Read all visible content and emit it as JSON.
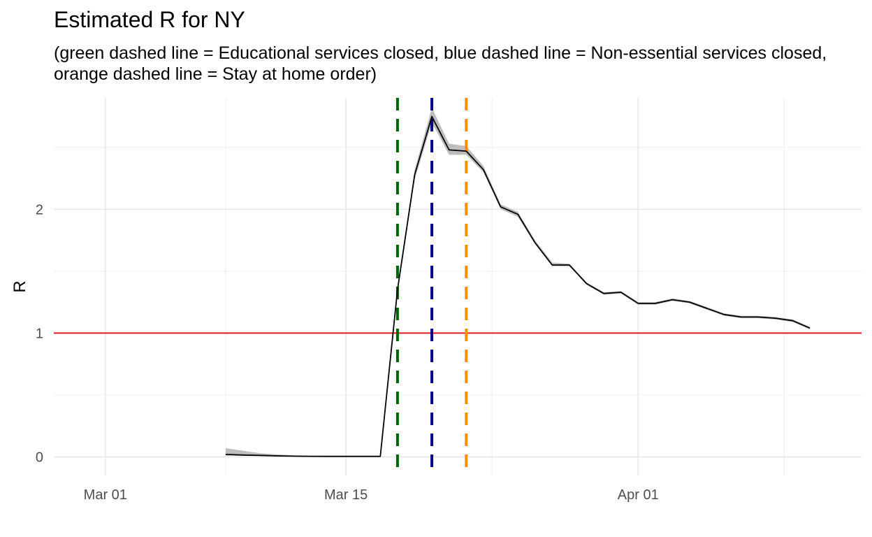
{
  "chart_data": {
    "type": "line",
    "title": "Estimated R for NY",
    "subtitle": "(green dashed line = Educational services closed, blue dashed line = Non-essential services closed,\norange dashed line = Stay at home order)",
    "xlabel": "",
    "ylabel": "R",
    "x_ticks": [
      "Mar 01",
      "Mar 15",
      "Apr 01"
    ],
    "x_tick_dates": [
      "2020-03-01",
      "2020-03-15",
      "2020-04-01"
    ],
    "xlim": [
      "2020-02-27",
      "2020-04-14"
    ],
    "y_ticks": [
      0,
      1,
      2
    ],
    "ylim": [
      -0.15,
      2.9
    ],
    "grid": true,
    "series": [
      {
        "color": "#000000",
        "points": [
          {
            "x": "2020-03-08",
            "y": 0.02,
            "lo": 0.01,
            "hi": 0.07
          },
          {
            "x": "2020-03-09",
            "y": 0.015,
            "lo": 0.01,
            "hi": 0.05
          },
          {
            "x": "2020-03-10",
            "y": 0.012,
            "lo": 0.008,
            "hi": 0.03
          },
          {
            "x": "2020-03-11",
            "y": 0.008,
            "lo": 0.005,
            "hi": 0.02
          },
          {
            "x": "2020-03-12",
            "y": 0.006,
            "lo": 0.004,
            "hi": 0.012
          },
          {
            "x": "2020-03-13",
            "y": 0.005,
            "lo": 0.003,
            "hi": 0.008
          },
          {
            "x": "2020-03-14",
            "y": 0.004,
            "lo": 0.003,
            "hi": 0.006
          },
          {
            "x": "2020-03-15",
            "y": 0.004,
            "lo": 0.003,
            "hi": 0.005
          },
          {
            "x": "2020-03-16",
            "y": 0.004,
            "lo": 0.003,
            "hi": 0.005
          },
          {
            "x": "2020-03-17",
            "y": 0.004,
            "lo": 0.003,
            "hi": 0.005
          },
          {
            "x": "2020-03-18",
            "y": 1.35,
            "lo": 1.33,
            "hi": 1.37
          },
          {
            "x": "2020-03-19",
            "y": 2.28,
            "lo": 2.24,
            "hi": 2.32
          },
          {
            "x": "2020-03-20",
            "y": 2.75,
            "lo": 2.7,
            "hi": 2.82
          },
          {
            "x": "2020-03-21",
            "y": 2.48,
            "lo": 2.44,
            "hi": 2.53
          },
          {
            "x": "2020-03-22",
            "y": 2.47,
            "lo": 2.44,
            "hi": 2.51
          },
          {
            "x": "2020-03-23",
            "y": 2.32,
            "lo": 2.3,
            "hi": 2.35
          },
          {
            "x": "2020-03-24",
            "y": 2.02,
            "lo": 2.0,
            "hi": 2.04
          },
          {
            "x": "2020-03-25",
            "y": 1.96,
            "lo": 1.94,
            "hi": 1.98
          },
          {
            "x": "2020-03-26",
            "y": 1.73,
            "lo": 1.72,
            "hi": 1.75
          },
          {
            "x": "2020-03-27",
            "y": 1.55,
            "lo": 1.54,
            "hi": 1.57
          },
          {
            "x": "2020-03-28",
            "y": 1.55,
            "lo": 1.54,
            "hi": 1.56
          },
          {
            "x": "2020-03-29",
            "y": 1.4,
            "lo": 1.39,
            "hi": 1.41
          },
          {
            "x": "2020-03-30",
            "y": 1.32,
            "lo": 1.31,
            "hi": 1.33
          },
          {
            "x": "2020-03-31",
            "y": 1.33,
            "lo": 1.32,
            "hi": 1.34
          },
          {
            "x": "2020-04-01",
            "y": 1.24,
            "lo": 1.23,
            "hi": 1.25
          },
          {
            "x": "2020-04-02",
            "y": 1.24,
            "lo": 1.23,
            "hi": 1.25
          },
          {
            "x": "2020-04-03",
            "y": 1.27,
            "lo": 1.26,
            "hi": 1.28
          },
          {
            "x": "2020-04-04",
            "y": 1.25,
            "lo": 1.24,
            "hi": 1.26
          },
          {
            "x": "2020-04-05",
            "y": 1.2,
            "lo": 1.19,
            "hi": 1.21
          },
          {
            "x": "2020-04-06",
            "y": 1.15,
            "lo": 1.14,
            "hi": 1.16
          },
          {
            "x": "2020-04-07",
            "y": 1.13,
            "lo": 1.12,
            "hi": 1.14
          },
          {
            "x": "2020-04-08",
            "y": 1.13,
            "lo": 1.12,
            "hi": 1.14
          },
          {
            "x": "2020-04-09",
            "y": 1.12,
            "lo": 1.11,
            "hi": 1.13
          },
          {
            "x": "2020-04-10",
            "y": 1.1,
            "lo": 1.09,
            "hi": 1.11
          },
          {
            "x": "2020-04-11",
            "y": 1.04,
            "lo": 1.03,
            "hi": 1.05
          }
        ]
      }
    ],
    "reference_lines": [
      {
        "orientation": "horizontal",
        "y": 1,
        "color": "#e31a1c",
        "style": "solid"
      },
      {
        "orientation": "vertical",
        "x": "2020-03-18",
        "color": "#006400",
        "style": "dashed"
      },
      {
        "orientation": "vertical",
        "x": "2020-03-20",
        "color": "#00008b",
        "style": "dashed"
      },
      {
        "orientation": "vertical",
        "x": "2020-03-22",
        "color": "#ff8c00",
        "style": "dashed"
      }
    ],
    "ribbon_color": "#bdbdbd"
  }
}
